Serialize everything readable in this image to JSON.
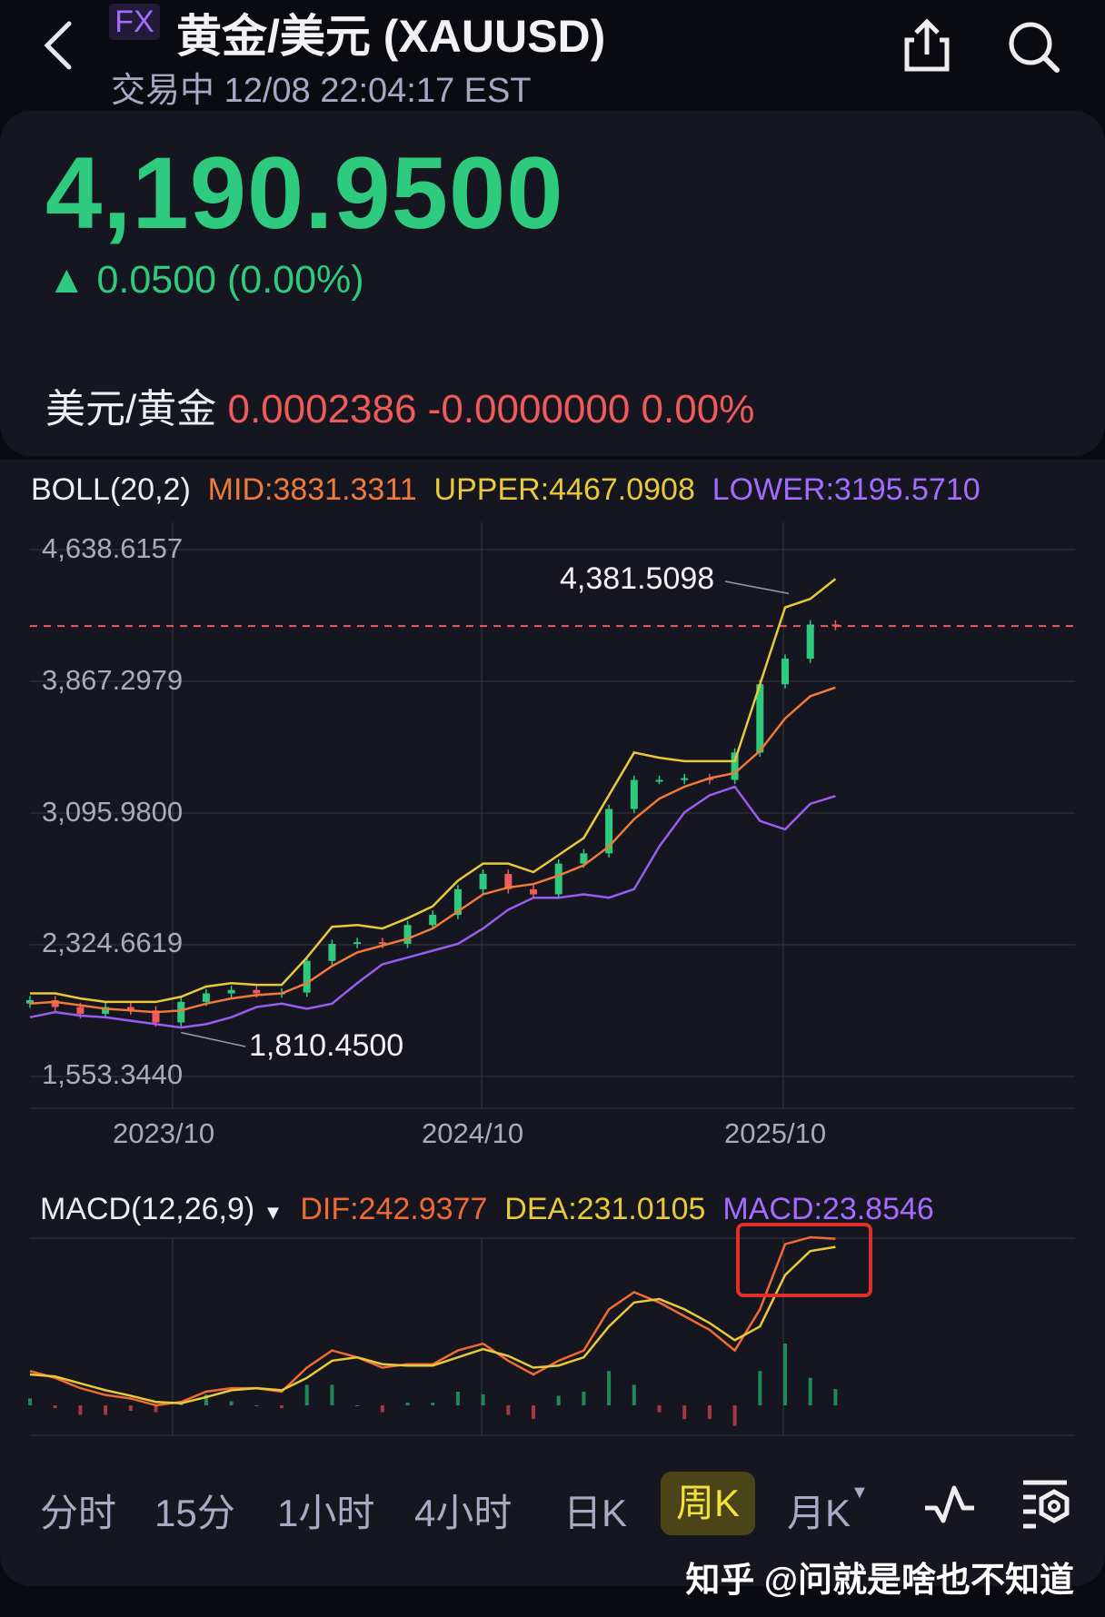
{
  "header": {
    "badge": "FX",
    "title": "黄金/美元 (XAUUSD)",
    "status": "交易中 12/08 22:04:17 EST",
    "back_icon": "chevron-left-icon",
    "share_icon": "share-icon",
    "search_icon": "search-icon"
  },
  "quote": {
    "price": "4,190.9500",
    "change": "▲ 0.0500 (0.00%)",
    "inverse_label": "美元/黄金",
    "inverse_values": "0.0002386 -0.0000000 0.00%",
    "up_color": "#2ecb7f",
    "down_color": "#ef5a5a"
  },
  "boll_legend": {
    "name": "BOLL(20,2)",
    "mid": "MID:3831.3311",
    "upper": "UPPER:4467.0908",
    "lower": "LOWER:3195.5710"
  },
  "macd_legend": {
    "name": "MACD(12,26,9)",
    "dif": "DIF:242.9377",
    "dea": "DEA:231.0105",
    "macd": "MACD:23.8546"
  },
  "annotations": {
    "high": "4,381.5098",
    "low": "1,810.4500"
  },
  "tabs": [
    "分时",
    "15分",
    "1小时",
    "4小时",
    "日K",
    "周K",
    "月K"
  ],
  "active_tab": "周K",
  "tool_icons": [
    "indicator-wave-icon",
    "chart-settings-icon"
  ],
  "watermark": "知乎 @问就是啥也不知道",
  "chart_data": [
    {
      "type": "candlestick",
      "title": "",
      "y_ticks": [
        "4,638.6157",
        "3,867.2979",
        "3,095.9800",
        "2,324.6619",
        "1,553.3440"
      ],
      "ylim": [
        1553.344,
        4638.6157
      ],
      "x_ticks": [
        "2023/10",
        "2024/10",
        "2025/10"
      ],
      "x": [
        "2023/04",
        "2023/05",
        "2023/06",
        "2023/07",
        "2023/08",
        "2023/09",
        "2023/10",
        "2023/11",
        "2023/12",
        "2024/01",
        "2024/02",
        "2024/03",
        "2024/04",
        "2024/05",
        "2024/06",
        "2024/07",
        "2024/08",
        "2024/09",
        "2024/10",
        "2024/11",
        "2024/12",
        "2025/01",
        "2025/02",
        "2025/03",
        "2025/04",
        "2025/05",
        "2025/06",
        "2025/07",
        "2025/08",
        "2025/09",
        "2025/10",
        "2025/11",
        "2025/12"
      ],
      "close": [
        2000,
        1960,
        1920,
        1960,
        1940,
        1870,
        1990,
        2040,
        2060,
        2040,
        2045,
        2230,
        2330,
        2340,
        2330,
        2440,
        2500,
        2650,
        2740,
        2650,
        2620,
        2800,
        2860,
        3120,
        3290,
        3290,
        3300,
        3290,
        3450,
        3850,
        4000,
        4200,
        4190.95
      ],
      "series": [
        {
          "name": "UPPER",
          "color": "#e8c93a",
          "values": [
            2040,
            2040,
            2010,
            1990,
            1990,
            1990,
            2020,
            2080,
            2100,
            2090,
            2090,
            2250,
            2430,
            2440,
            2420,
            2480,
            2550,
            2700,
            2800,
            2800,
            2750,
            2850,
            2950,
            3200,
            3450,
            3420,
            3400,
            3400,
            3400,
            3850,
            4300,
            4350,
            4467.09
          ]
        },
        {
          "name": "MID",
          "color": "#f07a3a",
          "values": [
            1980,
            1990,
            1970,
            1950,
            1940,
            1930,
            1940,
            1980,
            2010,
            2030,
            2040,
            2100,
            2200,
            2280,
            2320,
            2360,
            2420,
            2520,
            2620,
            2660,
            2680,
            2730,
            2790,
            2900,
            3060,
            3180,
            3250,
            3300,
            3330,
            3460,
            3650,
            3780,
            3831.33
          ]
        },
        {
          "name": "LOWER",
          "color": "#9b5cf0",
          "values": [
            1900,
            1930,
            1910,
            1900,
            1880,
            1860,
            1840,
            1860,
            1900,
            1960,
            1980,
            1950,
            1980,
            2100,
            2210,
            2250,
            2290,
            2330,
            2420,
            2530,
            2600,
            2600,
            2620,
            2600,
            2650,
            2900,
            3100,
            3200,
            3250,
            3050,
            3000,
            3150,
            3195.57
          ]
        }
      ],
      "high_point": {
        "x": "2025/10",
        "value": 4381.5098
      },
      "low_point": {
        "x": "2023/10",
        "value": 1810.45
      },
      "current_price_line": 4190.95
    },
    {
      "type": "macd",
      "x": [
        "2023/04",
        "2023/05",
        "2023/06",
        "2023/07",
        "2023/08",
        "2023/09",
        "2023/10",
        "2023/11",
        "2023/12",
        "2024/01",
        "2024/02",
        "2024/03",
        "2024/04",
        "2024/05",
        "2024/06",
        "2024/07",
        "2024/08",
        "2024/09",
        "2024/10",
        "2024/11",
        "2024/12",
        "2025/01",
        "2025/02",
        "2025/03",
        "2025/04",
        "2025/05",
        "2025/06",
        "2025/07",
        "2025/08",
        "2025/09",
        "2025/10",
        "2025/11",
        "2025/12"
      ],
      "series": [
        {
          "name": "DIF",
          "color": "#f06a35",
          "values": [
            50,
            40,
            25,
            15,
            10,
            0,
            5,
            20,
            25,
            25,
            20,
            55,
            80,
            70,
            55,
            60,
            60,
            80,
            90,
            65,
            45,
            65,
            80,
            140,
            165,
            150,
            130,
            110,
            80,
            140,
            235,
            245,
            242.94
          ]
        },
        {
          "name": "DEA",
          "color": "#e8c93a",
          "values": [
            45,
            42,
            32,
            22,
            14,
            5,
            3,
            12,
            22,
            25,
            22,
            40,
            65,
            70,
            60,
            58,
            58,
            70,
            82,
            72,
            55,
            58,
            70,
            115,
            150,
            155,
            140,
            120,
            95,
            115,
            190,
            225,
            231.01
          ]
        }
      ],
      "histogram": [
        10,
        -4,
        -14,
        -14,
        -8,
        -10,
        4,
        16,
        6,
        0,
        -4,
        30,
        30,
        0,
        -10,
        4,
        4,
        20,
        16,
        -14,
        -20,
        14,
        20,
        50,
        30,
        -10,
        -20,
        -20,
        -30,
        50,
        90,
        40,
        23.85
      ],
      "highlight_box_color": "#e0302a"
    }
  ]
}
